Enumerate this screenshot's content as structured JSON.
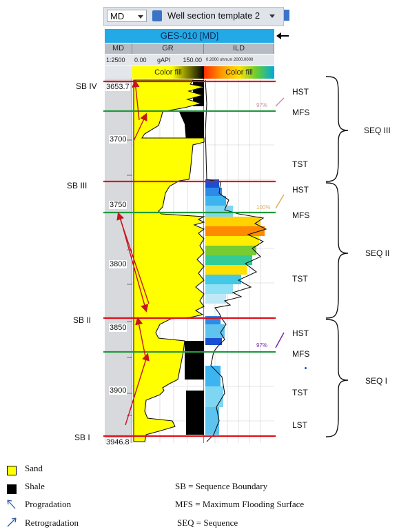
{
  "toolbar": {
    "depth_ref": "MD",
    "template": "Well section template 2"
  },
  "well": {
    "title": "GES-010 [MD]",
    "track_headers": {
      "md": "MD",
      "gr": "GR",
      "ild": "ILD"
    },
    "scale": "1:2500",
    "gr_min": "0.00",
    "gr_unit": "gAPI",
    "gr_max": "150.00",
    "ild_range": "0.2000 ohm.m 2000.0000",
    "gr_fill_label": "Color fill",
    "ild_fill_label": "Color fill",
    "depth_top": "3653.7",
    "depth_bottom": "3946.8",
    "depth_ticks": [
      "3700",
      "3750",
      "3800",
      "3850",
      "3900"
    ],
    "surface_tags": [
      "97%",
      "100%",
      "97%"
    ]
  },
  "sequence_boundaries": [
    "SB IV",
    "SB III",
    "SB II",
    "SB I"
  ],
  "systems_tracts": [
    "HST",
    "MFS",
    "TST",
    "HST",
    "MFS",
    "TST",
    "HST",
    "MFS",
    "TST",
    "LST"
  ],
  "sequences": [
    "SEQ III",
    "SEQ II",
    "SEQ I"
  ],
  "legend": {
    "sand": "Sand",
    "shale": "Shale",
    "progradation": "Progradation",
    "retrogradation": "Retrogradation",
    "sb_def": "SB = Sequence Boundary",
    "mfs_def": "MFS = Maximum Flooding Surface",
    "seq_def": "SEQ = Sequence"
  },
  "colors": {
    "sequence_boundary": "#e0101a",
    "mfs": "#1e9a3c",
    "sand": "#ffff00",
    "shale": "#000000",
    "header_blue": "#23a9e6",
    "arrow": "#c8141e"
  }
}
